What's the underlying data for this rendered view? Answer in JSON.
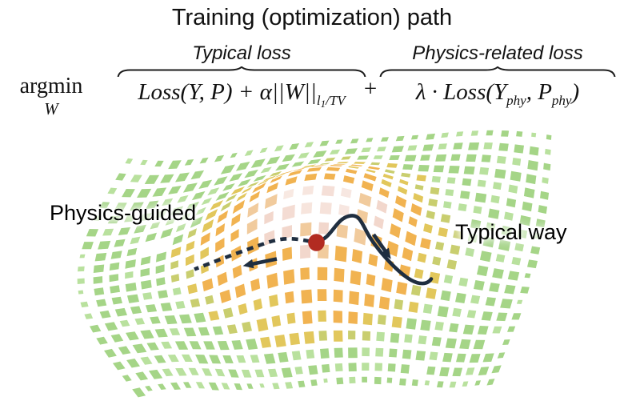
{
  "figure": {
    "title": "Training (optimization) path",
    "formula": {
      "operator": "argmin",
      "operator_subscript": "W",
      "plus": "+",
      "term_typical": {
        "label": "Typical loss",
        "main": "Loss(Y, P) + α||W||",
        "sub_l": "l",
        "sub_one": "1",
        "sub_rest": "/TV"
      },
      "term_physics": {
        "label": "Physics-related loss",
        "start": "λ · Loss(Y",
        "sub_first": "phy",
        "mid": ", P",
        "sub_second": "phy",
        "end": ")"
      }
    },
    "landscape": {
      "label_left": "Physics-guided",
      "label_right": "Typical way",
      "palette": {
        "green": "#a5d587",
        "green_light": "#b9e19e",
        "olive": "#c9ce6f",
        "yellow": "#e2c75c",
        "amber": "#f1b351",
        "peach": "#eec28c",
        "pink": "#f0d0c3"
      },
      "minimum_color": "#b22b21",
      "path_color": "#1f2e40",
      "brace_color": "#1c1c1c"
    }
  }
}
